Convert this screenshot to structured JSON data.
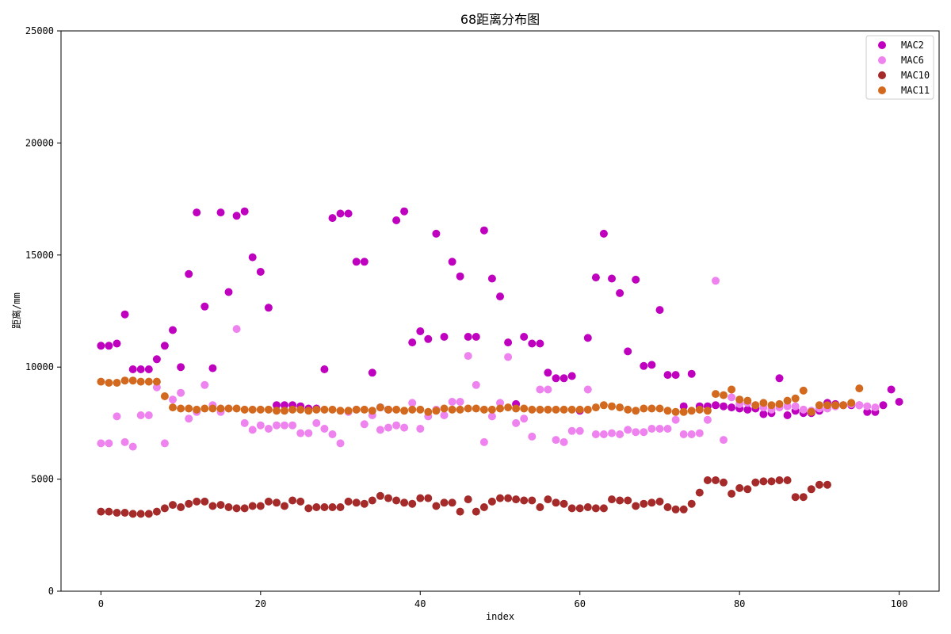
{
  "chart_data": {
    "type": "scatter",
    "title": "68距离分布图",
    "xlabel": "index",
    "ylabel": "距离/mm",
    "xlim": [
      -5,
      105
    ],
    "ylim": [
      0,
      25000
    ],
    "xticks": [
      0,
      20,
      40,
      60,
      80,
      100
    ],
    "yticks": [
      0,
      5000,
      10000,
      15000,
      20000,
      25000
    ],
    "grid": false,
    "legend_position": "top-right",
    "series": [
      {
        "name": "MAC2",
        "color": "#bf00bf",
        "x": [
          0,
          1,
          2,
          3,
          4,
          5,
          6,
          7,
          8,
          9,
          10,
          11,
          12,
          13,
          14,
          15,
          16,
          17,
          18,
          19,
          20,
          21,
          22,
          23,
          24,
          25,
          26,
          27,
          28,
          29,
          30,
          31,
          32,
          33,
          34,
          35,
          36,
          37,
          38,
          39,
          40,
          41,
          42,
          43,
          44,
          45,
          46,
          47,
          48,
          49,
          50,
          51,
          52,
          53,
          54,
          55,
          56,
          57,
          58,
          59,
          60,
          61,
          62,
          63,
          64,
          65,
          66,
          67,
          68,
          69,
          70,
          71,
          72,
          73,
          74,
          75,
          76,
          77,
          78,
          79,
          80,
          81,
          82,
          83,
          84,
          85,
          86,
          87,
          88,
          89,
          90,
          91,
          92,
          93,
          94,
          95,
          96,
          97,
          98,
          99,
          100
        ],
        "y": [
          10950,
          10950,
          11050,
          12350,
          9900,
          9900,
          9900,
          10350,
          10950,
          11650,
          10000,
          14150,
          16900,
          12700,
          9950,
          16900,
          13350,
          16750,
          16950,
          14900,
          14250,
          12650,
          8300,
          8300,
          8300,
          8250,
          8150,
          8150,
          9900,
          16650,
          16850,
          16850,
          14700,
          14700,
          9750,
          8200,
          8100,
          16550,
          16950,
          11100,
          11600,
          11250,
          15950,
          11350,
          14700,
          14050,
          11350,
          11350,
          16100,
          13950,
          13150,
          11100,
          8350,
          11350,
          11050,
          11050,
          9750,
          9500,
          9500,
          9600,
          8050,
          11300,
          14000,
          15950,
          13950,
          13300,
          10700,
          13900,
          10050,
          10100,
          12550,
          9650,
          9650,
          8250,
          9700,
          8250,
          8250,
          8300,
          8250,
          8200,
          8150,
          8100,
          8150,
          7900,
          7950,
          9500,
          7850,
          8050,
          7950,
          7950,
          8050,
          8400,
          8350,
          8300,
          8300,
          8300,
          8000,
          8000,
          8300,
          9000,
          8450
        ]
      },
      {
        "name": "MAC6",
        "color": "#ee82ee",
        "x": [
          0,
          1,
          2,
          3,
          4,
          5,
          6,
          7,
          8,
          9,
          10,
          11,
          12,
          13,
          14,
          15,
          16,
          17,
          18,
          19,
          20,
          21,
          22,
          23,
          24,
          25,
          26,
          27,
          28,
          29,
          30,
          31,
          32,
          33,
          34,
          35,
          36,
          37,
          38,
          39,
          40,
          41,
          42,
          43,
          44,
          45,
          46,
          47,
          48,
          49,
          50,
          51,
          52,
          53,
          54,
          55,
          56,
          57,
          58,
          59,
          60,
          61,
          62,
          63,
          64,
          65,
          66,
          67,
          68,
          69,
          70,
          71,
          72,
          73,
          74,
          75,
          76,
          77,
          78,
          79,
          80,
          81,
          82,
          83,
          84,
          85,
          86,
          87,
          88,
          89,
          90,
          91,
          92,
          93,
          94,
          95,
          96,
          97
        ],
        "y": [
          6600,
          6600,
          7800,
          6650,
          6450,
          7850,
          7850,
          9100,
          6600,
          8550,
          8850,
          7700,
          8000,
          9200,
          8300,
          8000,
          8150,
          11700,
          7500,
          7200,
          7400,
          7250,
          7400,
          7400,
          7400,
          7050,
          7050,
          7500,
          7250,
          7000,
          6600,
          8000,
          8100,
          7450,
          7850,
          7200,
          7300,
          7400,
          7300,
          8400,
          7250,
          7800,
          8100,
          7850,
          8450,
          8450,
          10500,
          9200,
          6650,
          7800,
          8400,
          10450,
          7500,
          7700,
          6900,
          9000,
          9000,
          6750,
          6650,
          7150,
          7150,
          9000,
          7000,
          7000,
          7050,
          7000,
          7200,
          7100,
          7100,
          7250,
          7250,
          7250,
          7650,
          7000,
          7000,
          7050,
          7650,
          13850,
          6750,
          8650,
          8350,
          8400,
          8300,
          8200,
          8100,
          8200,
          8250,
          8250,
          8100,
          8050,
          8150,
          8150,
          8250,
          8300,
          8350,
          8300,
          8250,
          8200
        ]
      },
      {
        "name": "MAC10",
        "color": "#a52a2a",
        "x": [
          0,
          1,
          2,
          3,
          4,
          5,
          6,
          7,
          8,
          9,
          10,
          11,
          12,
          13,
          14,
          15,
          16,
          17,
          18,
          19,
          20,
          21,
          22,
          23,
          24,
          25,
          26,
          27,
          28,
          29,
          30,
          31,
          32,
          33,
          34,
          35,
          36,
          37,
          38,
          39,
          40,
          41,
          42,
          43,
          44,
          45,
          46,
          47,
          48,
          49,
          50,
          51,
          52,
          53,
          54,
          55,
          56,
          57,
          58,
          59,
          60,
          61,
          62,
          63,
          64,
          65,
          66,
          67,
          68,
          69,
          70,
          71,
          72,
          73,
          74,
          75,
          76,
          77,
          78,
          79,
          80,
          81,
          82,
          83,
          84,
          85,
          86,
          87,
          88,
          89,
          90,
          91
        ],
        "y": [
          3550,
          3550,
          3500,
          3500,
          3450,
          3450,
          3450,
          3550,
          3700,
          3850,
          3750,
          3900,
          4000,
          4000,
          3800,
          3850,
          3750,
          3700,
          3700,
          3800,
          3800,
          4000,
          3950,
          3800,
          4050,
          4000,
          3700,
          3750,
          3750,
          3750,
          3750,
          4000,
          3950,
          3900,
          4050,
          4250,
          4150,
          4050,
          3950,
          3900,
          4150,
          4150,
          3800,
          3950,
          3950,
          3550,
          4100,
          3550,
          3750,
          4000,
          4150,
          4150,
          4100,
          4050,
          4050,
          3750,
          4100,
          3950,
          3900,
          3700,
          3700,
          3750,
          3700,
          3700,
          4100,
          4050,
          4050,
          3800,
          3900,
          3950,
          4000,
          3750,
          3650,
          3650,
          3900,
          4400,
          4950,
          4950,
          4850,
          4350,
          4600,
          4550,
          4850,
          4900,
          4900,
          4950,
          4950,
          4200,
          4200,
          4550,
          4750,
          4750
        ]
      },
      {
        "name": "MAC11",
        "color": "#d2691e",
        "x": [
          0,
          1,
          2,
          3,
          4,
          5,
          6,
          7,
          8,
          9,
          10,
          11,
          12,
          13,
          14,
          15,
          16,
          17,
          18,
          19,
          20,
          21,
          22,
          23,
          24,
          25,
          26,
          27,
          28,
          29,
          30,
          31,
          32,
          33,
          34,
          35,
          36,
          37,
          38,
          39,
          40,
          41,
          42,
          43,
          44,
          45,
          46,
          47,
          48,
          49,
          50,
          51,
          52,
          53,
          54,
          55,
          56,
          57,
          58,
          59,
          60,
          61,
          62,
          63,
          64,
          65,
          66,
          67,
          68,
          69,
          70,
          71,
          72,
          73,
          74,
          75,
          76,
          77,
          78,
          79,
          80,
          81,
          82,
          83,
          84,
          85,
          86,
          87,
          88,
          89,
          90,
          91,
          92,
          93,
          94,
          95
        ],
        "y": [
          9350,
          9300,
          9300,
          9400,
          9400,
          9350,
          9350,
          9350,
          8700,
          8200,
          8150,
          8150,
          8100,
          8150,
          8150,
          8150,
          8150,
          8150,
          8100,
          8100,
          8100,
          8100,
          8050,
          8050,
          8100,
          8100,
          8050,
          8100,
          8100,
          8100,
          8050,
          8050,
          8100,
          8100,
          8050,
          8200,
          8100,
          8100,
          8050,
          8100,
          8100,
          8000,
          8050,
          8150,
          8100,
          8100,
          8150,
          8150,
          8100,
          8100,
          8150,
          8200,
          8150,
          8150,
          8100,
          8100,
          8100,
          8100,
          8100,
          8100,
          8100,
          8100,
          8200,
          8300,
          8250,
          8200,
          8100,
          8050,
          8150,
          8150,
          8150,
          8050,
          8000,
          8000,
          8050,
          8100,
          8050,
          8800,
          8750,
          9000,
          8550,
          8500,
          8300,
          8400,
          8300,
          8350,
          8500,
          8600,
          8950,
          8000,
          8300,
          8300,
          8300,
          8300,
          8400,
          9050
        ]
      }
    ]
  }
}
